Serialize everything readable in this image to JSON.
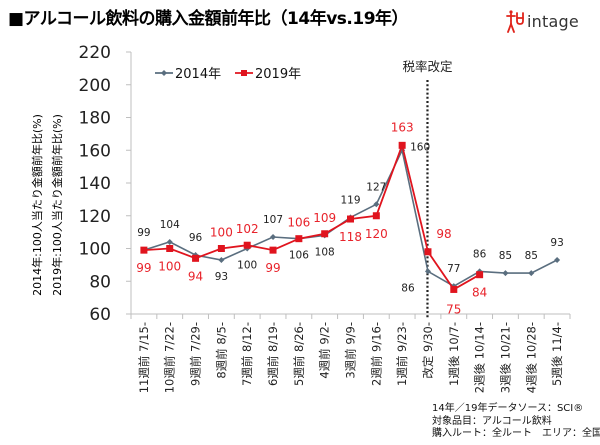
{
  "header": {
    "title": "■アルコール飲料の購入金額前年比（14年vs.19年）",
    "logo_text": "intage",
    "logo_color": "#e0241b"
  },
  "chart_data": {
    "type": "line",
    "title": "アルコール飲料の購入金額前年比（14年vs.19年）",
    "ylabel_lines": [
      "2014年:100人当たり金額前年比(%)",
      "2019年:100人当たり金額前年比(%)"
    ],
    "xlabel": "",
    "ylim": [
      60,
      220
    ],
    "yticks": [
      60,
      80,
      100,
      120,
      140,
      160,
      180,
      200,
      220
    ],
    "grid": false,
    "legend_position": "top-left",
    "categories": [
      "11週前 7/15-",
      "10週前 7/22-",
      "9週前 7/29-",
      "8週前 8/5-",
      "7週前 8/12-",
      "6週前 8/19-",
      "5週前 8/26-",
      "4週前 9/2-",
      "3週前 9/9-",
      "2週前 9/16-",
      "1週前 9/23-",
      "改定 9/30-",
      "1週後 10/7-",
      "2週後 10/14-",
      "3週後 10/21-",
      "4週後 10/28-",
      "5週後 11/4-"
    ],
    "series": [
      {
        "name": "2014年",
        "color": "#5a6e7f",
        "marker": "diamond",
        "values": [
          99,
          104,
          96,
          93,
          100,
          107,
          106,
          108,
          119,
          127,
          160,
          86,
          77,
          86,
          85,
          85,
          93
        ]
      },
      {
        "name": "2019年",
        "color": "#e0141e",
        "marker": "square",
        "values": [
          99,
          100,
          94,
          100,
          102,
          99,
          106,
          109,
          118,
          120,
          163,
          98,
          75,
          84,
          null,
          null,
          null
        ]
      }
    ],
    "annotations": [
      {
        "text": "税率改定",
        "category_index": 11,
        "style": "dotted-vertical-line"
      }
    ]
  },
  "footer": {
    "source_lines": [
      "14年／19年データソース：SCI®",
      "対象品目：アルコール飲料",
      "購入ルート：全ルート　エリア：全国"
    ]
  }
}
